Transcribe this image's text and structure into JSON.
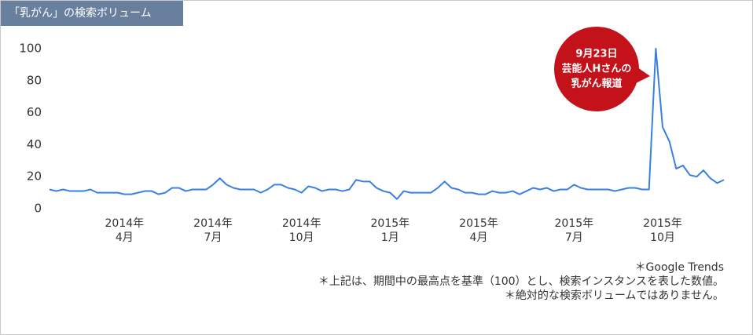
{
  "header": {
    "title": "「乳がん」の検索ボリューム"
  },
  "chart_data": {
    "type": "line",
    "categories": [
      null,
      null,
      null,
      null,
      null,
      null,
      null,
      null,
      null,
      null,
      null,
      "2014年\n4月",
      null,
      null,
      null,
      null,
      null,
      null,
      null,
      null,
      null,
      null,
      null,
      null,
      "2014年\n7月",
      null,
      null,
      null,
      null,
      null,
      null,
      null,
      null,
      null,
      null,
      null,
      null,
      "2014年\n10月",
      null,
      null,
      null,
      null,
      null,
      null,
      null,
      null,
      null,
      null,
      null,
      null,
      "2015年\n1月",
      null,
      null,
      null,
      null,
      null,
      null,
      null,
      null,
      null,
      null,
      null,
      null,
      "2015年\n4月",
      null,
      null,
      null,
      null,
      null,
      null,
      null,
      null,
      null,
      null,
      null,
      null,
      null,
      "2015年\n7月",
      null,
      null,
      null,
      null,
      null,
      null,
      null,
      null,
      null,
      null,
      null,
      null,
      "2015年\n10月",
      null,
      null,
      null,
      null,
      null,
      null,
      null,
      null,
      null
    ],
    "series": [
      {
        "name": "乳がん",
        "color": "#3a7fe2",
        "values": [
          12,
          11,
          12,
          11,
          11,
          11,
          12,
          10,
          10,
          10,
          10,
          9,
          9,
          10,
          11,
          11,
          9,
          10,
          13,
          13,
          11,
          12,
          12,
          12,
          15,
          19,
          15,
          13,
          12,
          12,
          12,
          10,
          12,
          15,
          15,
          13,
          12,
          10,
          14,
          13,
          11,
          12,
          12,
          11,
          12,
          18,
          17,
          17,
          13,
          11,
          10,
          6,
          11,
          10,
          10,
          10,
          10,
          13,
          17,
          13,
          12,
          10,
          10,
          9,
          9,
          11,
          10,
          10,
          11,
          9,
          11,
          13,
          12,
          13,
          11,
          12,
          12,
          15,
          13,
          12,
          12,
          12,
          12,
          11,
          12,
          13,
          13,
          12,
          12,
          100,
          51,
          42,
          25,
          27,
          21,
          20,
          24,
          19,
          16,
          18
        ]
      }
    ],
    "ylim": [
      0,
      100
    ],
    "yticks": [
      0,
      20,
      40,
      60,
      80,
      100
    ],
    "grid": false,
    "annotation": [
      "9月23日",
      "芸能人Hさんの",
      "乳がん報道"
    ]
  },
  "notes": [
    "＊Google Trends",
    "＊上記は、期間中の最高点を基準（100）とし、検索インスタンスを表した数値。",
    "＊絶対的な検索ボリュームではありません。"
  ]
}
